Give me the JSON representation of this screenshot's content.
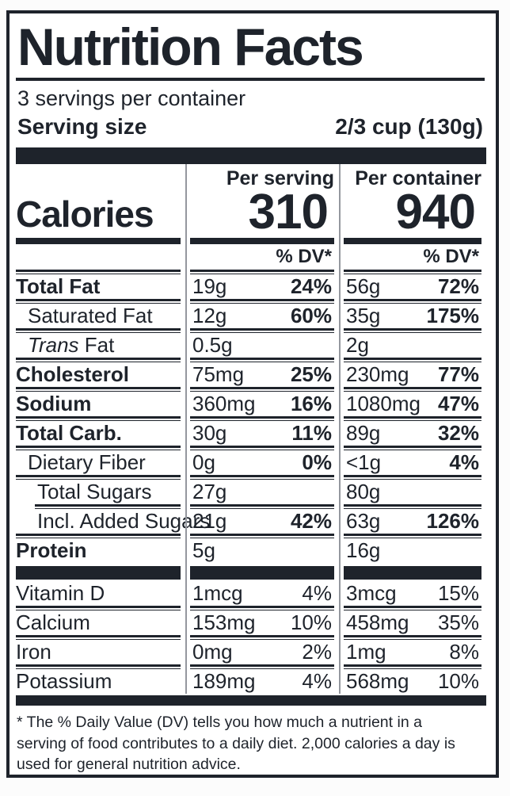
{
  "label": {
    "title": "Nutrition Facts",
    "servings_per_container": "3 servings per container",
    "serving_size_label": "Serving size",
    "serving_size_value": "2/3 cup (130g)",
    "calories": {
      "label": "Calories",
      "columns": [
        {
          "header": "Per serving",
          "value": "310"
        },
        {
          "header": "Per container",
          "value": "940"
        }
      ],
      "dv_header": "% DV*"
    },
    "nutrients": [
      {
        "name": "Total Fat",
        "bold": true,
        "indent": 0,
        "serving": {
          "amount": "19g",
          "dv": "24%"
        },
        "container": {
          "amount": "56g",
          "dv": "72%"
        }
      },
      {
        "name": "Saturated Fat",
        "bold": false,
        "indent": 1,
        "serving": {
          "amount": "12g",
          "dv": "60%"
        },
        "container": {
          "amount": "35g",
          "dv": "175%"
        }
      },
      {
        "name": " Fat",
        "italic": "Trans",
        "bold": false,
        "indent": 1,
        "serving": {
          "amount": "0.5g",
          "dv": ""
        },
        "container": {
          "amount": "2g",
          "dv": ""
        }
      },
      {
        "name": "Cholesterol",
        "bold": true,
        "indent": 0,
        "serving": {
          "amount": "75mg",
          "dv": "25%"
        },
        "container": {
          "amount": "230mg",
          "dv": "77%"
        }
      },
      {
        "name": "Sodium",
        "bold": true,
        "indent": 0,
        "serving": {
          "amount": "360mg",
          "dv": "16%"
        },
        "container": {
          "amount": "1080mg",
          "dv": "47%"
        }
      },
      {
        "name": "Total Carb.",
        "bold": true,
        "indent": 0,
        "serving": {
          "amount": "30g",
          "dv": "11%"
        },
        "container": {
          "amount": "89g",
          "dv": "32%"
        }
      },
      {
        "name": "Dietary Fiber",
        "bold": false,
        "indent": 1,
        "serving": {
          "amount": "0g",
          "dv": "0%"
        },
        "container": {
          "amount": "<1g",
          "dv": "4%"
        }
      },
      {
        "name": "Total Sugars",
        "bold": false,
        "indent": 2,
        "rule_after_indent": true,
        "serving": {
          "amount": "27g",
          "dv": ""
        },
        "container": {
          "amount": "80g",
          "dv": ""
        }
      },
      {
        "name": "Incl. Added Sugars",
        "bold": false,
        "indent": 2,
        "serving": {
          "amount": "21g",
          "dv": "42%"
        },
        "container": {
          "amount": "63g",
          "dv": "126%"
        }
      },
      {
        "name": "Protein",
        "bold": true,
        "indent": 0,
        "serving": {
          "amount": "5g",
          "dv": ""
        },
        "container": {
          "amount": "16g",
          "dv": ""
        }
      }
    ],
    "vitamins": [
      {
        "name": "Vitamin D",
        "serving": {
          "amount": "1mcg",
          "dv": "4%"
        },
        "container": {
          "amount": "3mcg",
          "dv": "15%"
        }
      },
      {
        "name": "Calcium",
        "serving": {
          "amount": "153mg",
          "dv": "10%"
        },
        "container": {
          "amount": "458mg",
          "dv": "35%"
        }
      },
      {
        "name": "Iron",
        "serving": {
          "amount": "0mg",
          "dv": "2%"
        },
        "container": {
          "amount": "1mg",
          "dv": "8%"
        }
      },
      {
        "name": "Potassium",
        "serving": {
          "amount": "189mg",
          "dv": "4%"
        },
        "container": {
          "amount": "568mg",
          "dv": "10%"
        }
      }
    ],
    "footnote": "* The % Daily Value (DV) tells you how much a nutrient in a serving of food contributes to a daily diet. 2,000 calories a day is used for general nutrition advice."
  },
  "colors": {
    "ink": "#1e232b",
    "divider_gray": "#94979e",
    "background": "#ffffff"
  }
}
